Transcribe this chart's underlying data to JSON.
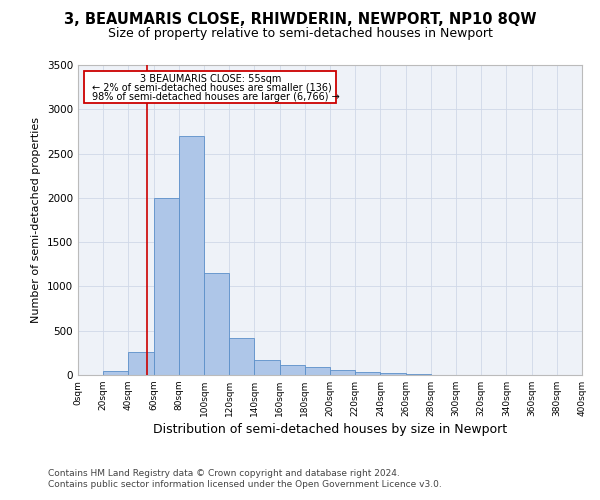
{
  "title": "3, BEAUMARIS CLOSE, RHIWDERIN, NEWPORT, NP10 8QW",
  "subtitle": "Size of property relative to semi-detached houses in Newport",
  "xlabel": "Distribution of semi-detached houses by size in Newport",
  "ylabel": "Number of semi-detached properties",
  "footnote1": "Contains HM Land Registry data © Crown copyright and database right 2024.",
  "footnote2": "Contains public sector information licensed under the Open Government Licence v3.0.",
  "annotation_line1": "3 BEAUMARIS CLOSE: 55sqm",
  "annotation_line2": "← 2% of semi-detached houses are smaller (136)",
  "annotation_line3": "98% of semi-detached houses are larger (6,766) →",
  "property_size": 55,
  "bar_edges": [
    0,
    20,
    40,
    60,
    80,
    100,
    120,
    140,
    160,
    180,
    200,
    220,
    240,
    260,
    280,
    300,
    320,
    340,
    360,
    380,
    400
  ],
  "bar_heights": [
    0,
    50,
    260,
    2000,
    2700,
    1150,
    420,
    170,
    110,
    85,
    55,
    35,
    20,
    10,
    5,
    3,
    2,
    1,
    1,
    0
  ],
  "bar_color": "#aec6e8",
  "bar_edge_color": "#5b8fc9",
  "vline_color": "#cc0000",
  "annotation_box_color": "#cc0000",
  "ylim": [
    0,
    3500
  ],
  "yticks": [
    0,
    500,
    1000,
    1500,
    2000,
    2500,
    3000,
    3500
  ],
  "xtick_labels": [
    "0sqm",
    "20sqm",
    "40sqm",
    "60sqm",
    "80sqm",
    "100sqm",
    "120sqm",
    "140sqm",
    "160sqm",
    "180sqm",
    "200sqm",
    "220sqm",
    "240sqm",
    "260sqm",
    "280sqm",
    "300sqm",
    "320sqm",
    "340sqm",
    "360sqm",
    "380sqm",
    "400sqm"
  ],
  "grid_color": "#d0d8e8",
  "bg_color": "#eef2f8",
  "title_fontsize": 10.5,
  "subtitle_fontsize": 9,
  "xlabel_fontsize": 9,
  "ylabel_fontsize": 8,
  "footnote_fontsize": 6.5,
  "annotation_fontsize": 7
}
